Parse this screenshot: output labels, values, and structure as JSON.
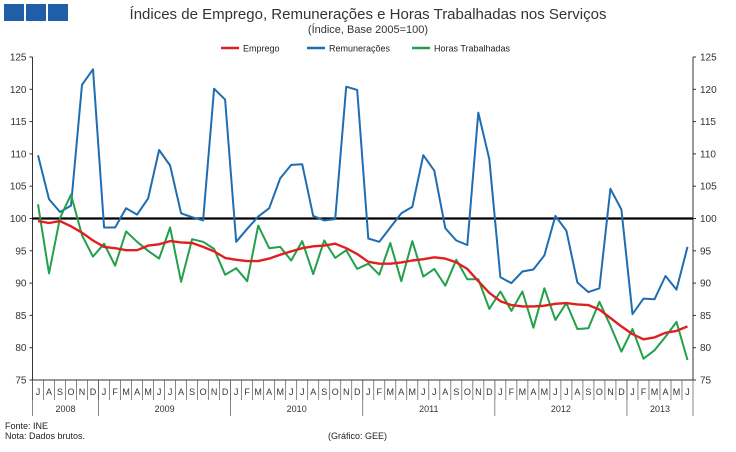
{
  "header": {
    "title": "Índices de Emprego, Remunerações e Horas Trabalhadas nos Serviços",
    "subtitle": "(Índice, Base 2005=100)"
  },
  "footer": {
    "source": "Fonte: INE",
    "note": "Nota: Dados brutos.",
    "credit": "(Gráfico: GEE)"
  },
  "chart_data": {
    "type": "line",
    "title": "Índices de Emprego, Remunerações e Horas Trabalhadas nos Serviços",
    "subtitle": "(Índice, Base 2005=100)",
    "ylim": [
      75,
      125
    ],
    "yticks": [
      75,
      80,
      85,
      90,
      95,
      100,
      105,
      110,
      115,
      120,
      125
    ],
    "reference_line": 100,
    "legend_position": "top-center",
    "month_labels": [
      "J",
      "A",
      "S",
      "O",
      "N",
      "D",
      "J",
      "F",
      "M",
      "A",
      "M",
      "J",
      "J",
      "A",
      "S",
      "O",
      "N",
      "D",
      "J",
      "F",
      "M",
      "A",
      "M",
      "J",
      "J",
      "A",
      "S",
      "O",
      "N",
      "D",
      "J",
      "F",
      "M",
      "A",
      "M",
      "J",
      "J",
      "A",
      "S",
      "O",
      "N",
      "D",
      "J",
      "F",
      "M",
      "A",
      "M",
      "J",
      "J",
      "A",
      "S",
      "O",
      "N",
      "D",
      "J",
      "F",
      "M",
      "A",
      "M",
      "J"
    ],
    "years": [
      {
        "label": "2008",
        "months": 6
      },
      {
        "label": "2009",
        "months": 12
      },
      {
        "label": "2010",
        "months": 12
      },
      {
        "label": "2011",
        "months": 12
      },
      {
        "label": "2012",
        "months": 12
      },
      {
        "label": "2013",
        "months": 6
      }
    ],
    "series": [
      {
        "name": "Emprego",
        "color": "#e02020",
        "values": [
          99.6,
          99.3,
          99.6,
          98.8,
          97.8,
          96.6,
          95.6,
          95.4,
          95.1,
          95.1,
          95.8,
          96.0,
          96.5,
          96.3,
          96.2,
          95.6,
          94.9,
          93.9,
          93.6,
          93.4,
          93.4,
          93.8,
          94.4,
          94.9,
          95.4,
          95.7,
          95.8,
          96.1,
          95.4,
          94.5,
          93.3,
          93.0,
          93.0,
          93.2,
          93.5,
          93.7,
          94.0,
          93.8,
          93.2,
          92.2,
          90.3,
          88.5,
          87.2,
          86.6,
          86.4,
          86.4,
          86.5,
          86.8,
          86.9,
          86.7,
          86.6,
          85.9,
          84.6,
          83.3,
          82.1,
          81.3,
          81.6,
          82.3,
          82.6,
          83.3
        ]
      },
      {
        "name": "Remunerações",
        "color": "#1f6db0",
        "values": [
          109.8,
          103,
          101,
          102,
          120.7,
          123.1,
          98.6,
          98.6,
          101.6,
          100.6,
          103.1,
          110.6,
          108.2,
          100.8,
          100.2,
          99.7,
          120.1,
          118.4,
          96.4,
          98.4,
          100.3,
          101.6,
          106.2,
          108.3,
          108.4,
          100.4,
          99.7,
          99.9,
          120.4,
          119.9,
          96.9,
          96.4,
          98.6,
          100.8,
          101.8,
          109.8,
          107.4,
          98.5,
          96.6,
          95.9,
          116.4,
          109.2,
          90.9,
          90.0,
          91.8,
          92.1,
          94.3,
          100.4,
          98.1,
          90.1,
          88.6,
          89.2,
          104.6,
          101.4,
          85.2,
          87.6,
          87.5,
          91.1,
          89.0,
          95.6
        ]
      },
      {
        "name": "Horas Trabalhadas",
        "color": "#22a04a",
        "values": [
          102.2,
          91.5,
          100.1,
          103.7,
          97.4,
          94.1,
          96.1,
          92.7,
          98.0,
          96.4,
          95.0,
          93.8,
          98.6,
          90.2,
          96.8,
          96.4,
          95.3,
          91.3,
          92.3,
          90.3,
          98.9,
          95.4,
          95.6,
          93.5,
          96.5,
          91.4,
          96.6,
          93.9,
          95.1,
          92.2,
          93.0,
          91.3,
          96.2,
          90.3,
          96.5,
          91.0,
          92.2,
          89.6,
          93.6,
          90.6,
          90.6,
          86.0,
          88.7,
          85.7,
          88.7,
          83.1,
          89.2,
          84.3,
          86.9,
          82.9,
          83.0,
          87.1,
          83.4,
          79.4,
          82.9,
          78.3,
          79.6,
          81.7,
          84.0,
          78.1
        ]
      }
    ]
  }
}
